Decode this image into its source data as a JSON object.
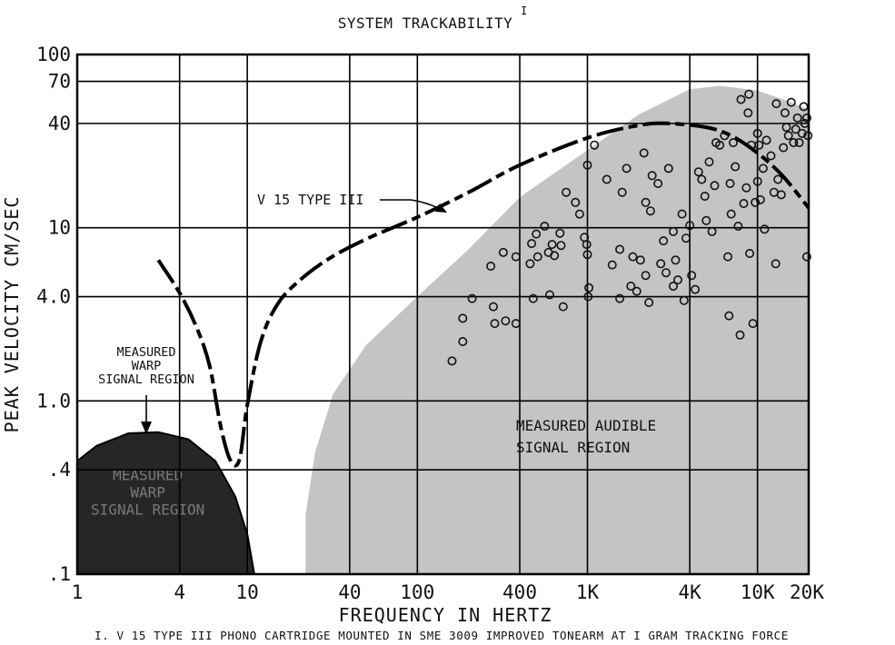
{
  "chart_data": {
    "type": "scatter",
    "title": "SYSTEM TRACKABILITY",
    "title_superscript": "I",
    "xlabel": "FREQUENCY IN HERTZ",
    "ylabel": "PEAK VELOCITY CM/SEC",
    "x_scale": "log",
    "y_scale": "log",
    "xlim": [
      1,
      20000
    ],
    "ylim": [
      0.1,
      100
    ],
    "grid": true,
    "x_ticks": [
      {
        "value": 1,
        "label": "1"
      },
      {
        "value": 4,
        "label": "4"
      },
      {
        "value": 10,
        "label": "10"
      },
      {
        "value": 40,
        "label": "40"
      },
      {
        "value": 100,
        "label": "100"
      },
      {
        "value": 400,
        "label": "400"
      },
      {
        "value": 1000,
        "label": "1K"
      },
      {
        "value": 4000,
        "label": "4K"
      },
      {
        "value": 10000,
        "label": "10K"
      },
      {
        "value": 20000,
        "label": "20K"
      }
    ],
    "y_ticks": [
      {
        "value": 0.1,
        "label": ".1"
      },
      {
        "value": 0.4,
        "label": ".4"
      },
      {
        "value": 1,
        "label": "1.0"
      },
      {
        "value": 4,
        "label": "4.0"
      },
      {
        "value": 10,
        "label": "10"
      },
      {
        "value": 40,
        "label": "40"
      },
      {
        "value": 70,
        "label": "70"
      },
      {
        "value": 100,
        "label": "100"
      }
    ],
    "curve": {
      "name": "V 15 TYPE III",
      "style": "dashed",
      "color": "#000000",
      "points": [
        [
          3,
          6.5
        ],
        [
          4,
          4.2
        ],
        [
          5,
          2.7
        ],
        [
          6,
          1.6
        ],
        [
          7,
          0.7
        ],
        [
          8,
          0.45
        ],
        [
          9,
          0.46
        ],
        [
          10,
          0.95
        ],
        [
          12,
          2.2
        ],
        [
          15,
          3.6
        ],
        [
          20,
          4.9
        ],
        [
          30,
          6.6
        ],
        [
          50,
          8.6
        ],
        [
          100,
          11.5
        ],
        [
          200,
          16
        ],
        [
          400,
          23
        ],
        [
          1000,
          33
        ],
        [
          2000,
          39
        ],
        [
          3000,
          40
        ],
        [
          5000,
          38
        ],
        [
          7000,
          34
        ],
        [
          10000,
          27
        ],
        [
          14000,
          20
        ],
        [
          20000,
          13
        ]
      ]
    },
    "regions": [
      {
        "label": "MEASURED AUDIBLE SIGNAL REGION",
        "lines": [
          "MEASURED AUDIBLE",
          "SIGNAL REGION"
        ],
        "color": "#c4c4c4",
        "boundary": [
          [
            22,
            0.1
          ],
          [
            22,
            0.22
          ],
          [
            25,
            0.5
          ],
          [
            32,
            1.1
          ],
          [
            50,
            2.1
          ],
          [
            100,
            4
          ],
          [
            200,
            7.5
          ],
          [
            400,
            15
          ],
          [
            1000,
            28
          ],
          [
            2000,
            45
          ],
          [
            4000,
            63
          ],
          [
            6000,
            66
          ],
          [
            10000,
            62
          ],
          [
            15000,
            54
          ],
          [
            20000,
            48
          ],
          [
            20000,
            0.1
          ]
        ]
      },
      {
        "label": "MEASURED WARP SIGNAL REGION",
        "lines": [
          "MEASURED",
          "WARP",
          "SIGNAL REGION"
        ],
        "color": "#262626",
        "boundary": [
          [
            1,
            0.1
          ],
          [
            1,
            0.45
          ],
          [
            1.3,
            0.55
          ],
          [
            2,
            0.65
          ],
          [
            3,
            0.66
          ],
          [
            4.5,
            0.6
          ],
          [
            6.5,
            0.45
          ],
          [
            8.5,
            0.28
          ],
          [
            10,
            0.17
          ],
          [
            11,
            0.1
          ]
        ]
      }
    ],
    "annotations": [
      {
        "text": "V 15 TYPE III",
        "target": [
          170,
          14
        ]
      },
      {
        "text": "MEASURED",
        "lines": [
          "MEASURED",
          "WARP",
          "SIGNAL REGION"
        ],
        "target": [
          3,
          0.66
        ]
      }
    ],
    "scatter_points": [
      [
        160,
        1.7
      ],
      [
        185,
        3
      ],
      [
        185,
        2.2
      ],
      [
        210,
        3.9
      ],
      [
        270,
        6
      ],
      [
        280,
        3.5
      ],
      [
        285,
        2.8
      ],
      [
        320,
        7.2
      ],
      [
        330,
        2.9
      ],
      [
        380,
        2.8
      ],
      [
        380,
        6.8
      ],
      [
        460,
        6.2
      ],
      [
        470,
        8.1
      ],
      [
        480,
        3.9
      ],
      [
        500,
        9.2
      ],
      [
        510,
        6.8
      ],
      [
        560,
        10.2
      ],
      [
        590,
        7.2
      ],
      [
        600,
        4.1
      ],
      [
        620,
        8
      ],
      [
        640,
        6.9
      ],
      [
        690,
        9.3
      ],
      [
        700,
        7.9
      ],
      [
        720,
        3.5
      ],
      [
        750,
        16
      ],
      [
        850,
        14
      ],
      [
        900,
        12
      ],
      [
        960,
        8.8
      ],
      [
        990,
        8
      ],
      [
        1000,
        7
      ],
      [
        1010,
        4
      ],
      [
        1020,
        4.5
      ],
      [
        1000,
        23
      ],
      [
        1100,
        30
      ],
      [
        1300,
        19
      ],
      [
        1400,
        6.1
      ],
      [
        1550,
        7.5
      ],
      [
        1550,
        3.9
      ],
      [
        1600,
        16
      ],
      [
        1700,
        22
      ],
      [
        1800,
        4.6
      ],
      [
        1850,
        6.8
      ],
      [
        1950,
        4.3
      ],
      [
        2050,
        6.5
      ],
      [
        2150,
        27
      ],
      [
        2200,
        14
      ],
      [
        2200,
        5.3
      ],
      [
        2300,
        3.7
      ],
      [
        2350,
        12.5
      ],
      [
        2400,
        20
      ],
      [
        2600,
        18
      ],
      [
        2700,
        6.2
      ],
      [
        2800,
        8.4
      ],
      [
        2900,
        5.5
      ],
      [
        3000,
        22
      ],
      [
        3200,
        9.5
      ],
      [
        3200,
        4.6
      ],
      [
        3300,
        6.5
      ],
      [
        3400,
        5
      ],
      [
        3600,
        12
      ],
      [
        3700,
        3.8
      ],
      [
        3800,
        8.7
      ],
      [
        4000,
        10.3
      ],
      [
        4100,
        5.3
      ],
      [
        4300,
        4.4
      ],
      [
        4500,
        21
      ],
      [
        4700,
        19
      ],
      [
        4900,
        15.2
      ],
      [
        5000,
        11
      ],
      [
        5200,
        24
      ],
      [
        5400,
        9.5
      ],
      [
        5600,
        17.5
      ],
      [
        5700,
        31
      ],
      [
        6000,
        30
      ],
      [
        6400,
        34
      ],
      [
        6700,
        6.8
      ],
      [
        6800,
        3.1
      ],
      [
        6900,
        18
      ],
      [
        7000,
        12
      ],
      [
        7200,
        31
      ],
      [
        7400,
        22.5
      ],
      [
        7700,
        10.2
      ],
      [
        7900,
        2.4
      ],
      [
        8000,
        55
      ],
      [
        8300,
        13.8
      ],
      [
        8600,
        17
      ],
      [
        8800,
        46
      ],
      [
        8900,
        59
      ],
      [
        9000,
        7.1
      ],
      [
        9200,
        30
      ],
      [
        9400,
        2.8
      ],
      [
        9700,
        14
      ],
      [
        10000,
        18.5
      ],
      [
        10200,
        30
      ],
      [
        10400,
        14.5
      ],
      [
        10800,
        22
      ],
      [
        11000,
        9.8
      ],
      [
        11300,
        32
      ],
      [
        12000,
        26
      ],
      [
        12500,
        16
      ],
      [
        12800,
        6.2
      ],
      [
        12900,
        52
      ],
      [
        13200,
        19
      ],
      [
        13800,
        15.5
      ],
      [
        14200,
        29
      ],
      [
        14500,
        46
      ],
      [
        14800,
        38
      ],
      [
        15200,
        34
      ],
      [
        15800,
        53
      ],
      [
        16300,
        31
      ],
      [
        16800,
        37
      ],
      [
        17200,
        43
      ],
      [
        17600,
        31
      ],
      [
        18300,
        35
      ],
      [
        18700,
        50
      ],
      [
        19000,
        40
      ],
      [
        19500,
        43
      ],
      [
        19800,
        34
      ],
      [
        19500,
        6.8
      ],
      [
        10000,
        35
      ]
    ],
    "scatter_marker": "open-circle",
    "footnote": "I. V 15  TYPE III PHONO CARTRIDGE MOUNTED IN SME 3009 IMPROVED TONEARM AT I GRAM TRACKING FORCE"
  }
}
